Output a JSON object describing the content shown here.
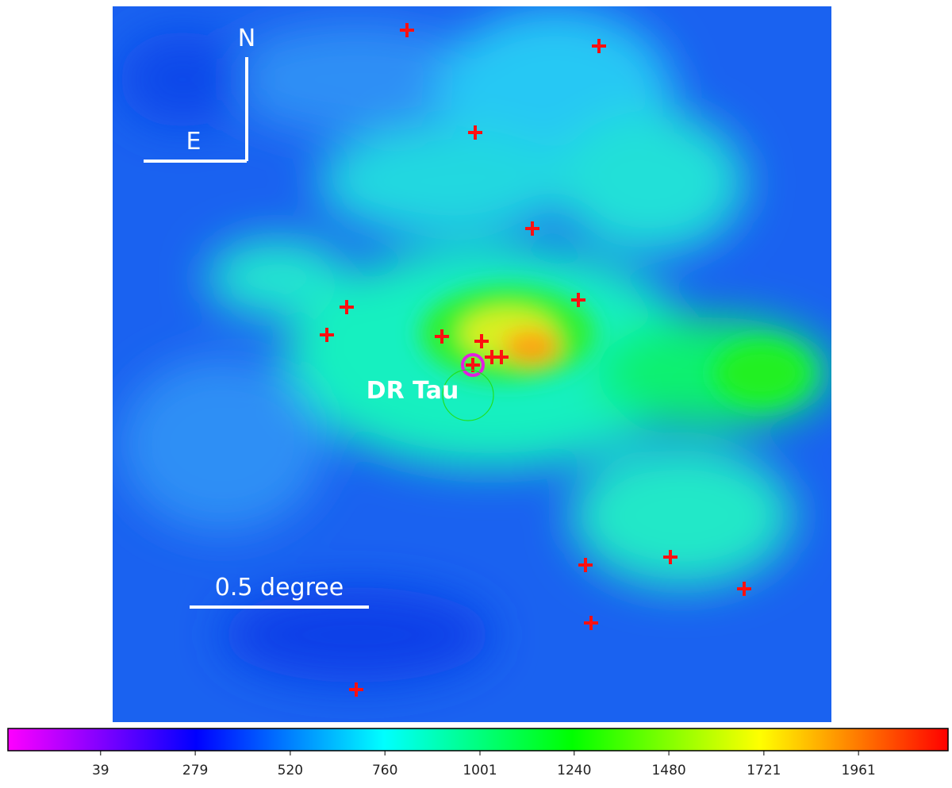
{
  "image": {
    "north_label": "N",
    "east_label": "E",
    "source_label": "DR Tau",
    "scale_label": "0.5 degree"
  },
  "colorbar": {
    "range": [
      -196,
      2188
    ],
    "ticks": [
      39,
      279,
      520,
      760,
      1001,
      1240,
      1480,
      1721,
      1961
    ]
  }
}
